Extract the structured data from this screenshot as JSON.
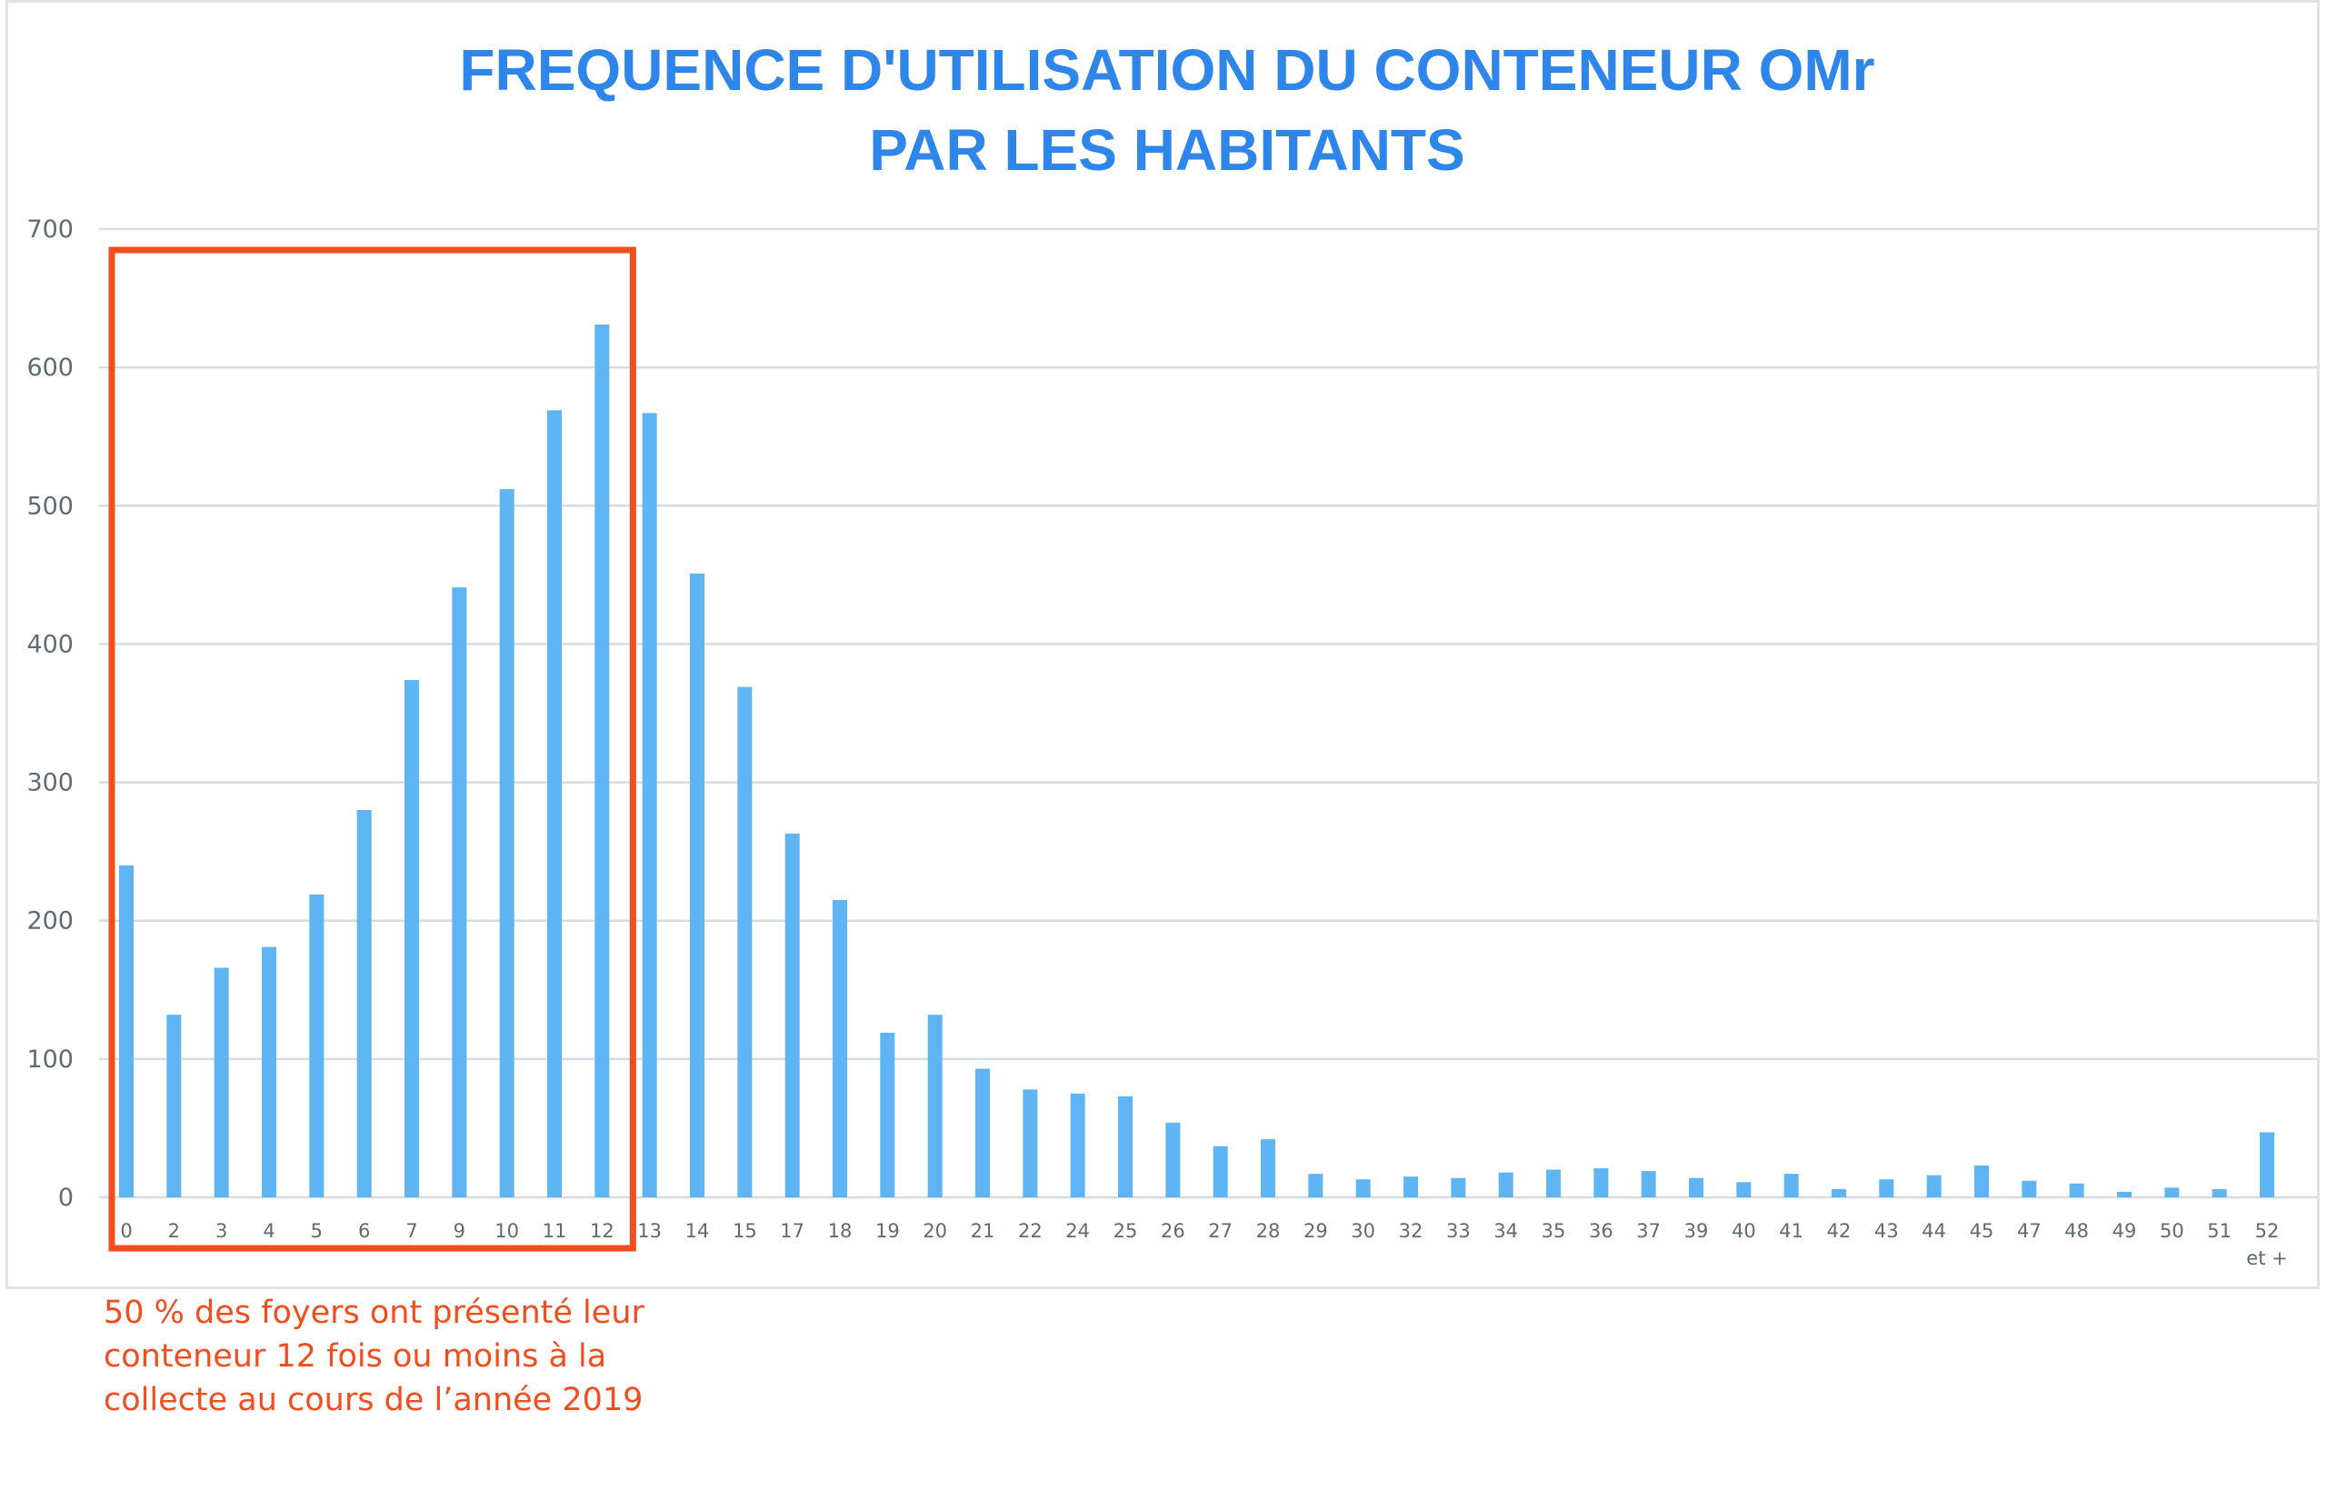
{
  "colors": {
    "bar": "#5fb4f4",
    "title": "#2f86ea",
    "highlight": "#f04e1e",
    "grid": "#d5dde2",
    "axis_text": "#5f6b73"
  },
  "chart_data": {
    "type": "bar",
    "title_lines": [
      "FREQUENCE D'UTILISATION DU CONTENEUR OMr",
      "PAR LES HABITANTS"
    ],
    "categories": [
      "0",
      "2",
      "3",
      "4",
      "5",
      "6",
      "7",
      "9",
      "10",
      "11",
      "12",
      "13",
      "14",
      "15",
      "17",
      "18",
      "19",
      "20",
      "21",
      "22",
      "24",
      "25",
      "26",
      "27",
      "28",
      "29",
      "30",
      "32",
      "33",
      "34",
      "35",
      "36",
      "37",
      "39",
      "40",
      "41",
      "42",
      "43",
      "44",
      "45",
      "47",
      "48",
      "49",
      "50",
      "51",
      "52"
    ],
    "last_category_suffix": "et +",
    "values": [
      240,
      132,
      166,
      181,
      219,
      280,
      374,
      441,
      512,
      569,
      631,
      567,
      451,
      369,
      263,
      215,
      119,
      132,
      93,
      78,
      75,
      73,
      54,
      37,
      42,
      17,
      13,
      15,
      14,
      18,
      20,
      21,
      19,
      14,
      11,
      17,
      6,
      13,
      16,
      23,
      12,
      10,
      4,
      7,
      6,
      47
    ],
    "yticks": [
      0,
      100,
      200,
      300,
      400,
      500,
      600,
      700
    ],
    "ylim": [
      0,
      700
    ],
    "grid": true,
    "highlight": {
      "from": "0",
      "to": "12"
    },
    "annotation": "50 % des foyers ont présenté leur\nconteneur 12 fois ou moins à la\ncollecte au cours de l’année 2019"
  }
}
